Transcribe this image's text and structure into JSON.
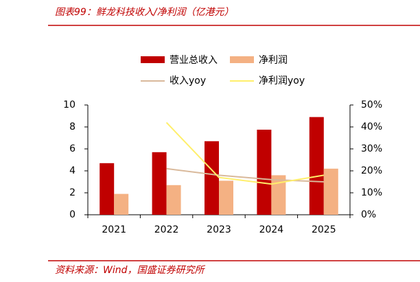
{
  "chart_data": {
    "type": "bar",
    "title": "图表99：鲜龙科技收入/净利润（亿港元）",
    "source": "资料来源：Wind，国盛证券研究所",
    "categories": [
      "2021",
      "2022",
      "2023",
      "2024",
      "2025"
    ],
    "series": [
      {
        "name": "营业总收入",
        "type": "bar",
        "color": "#c00000",
        "values": [
          4.7,
          5.7,
          6.7,
          7.75,
          8.9
        ]
      },
      {
        "name": "净利润",
        "type": "bar",
        "color": "#f4b183",
        "values": [
          1.9,
          2.7,
          3.1,
          3.6,
          4.2
        ]
      },
      {
        "name": "收入yoy",
        "type": "line",
        "axis": "y2",
        "color": "#d9b99b",
        "values": [
          null,
          21,
          18,
          16,
          15
        ]
      },
      {
        "name": "净利润yoy",
        "type": "line",
        "axis": "y2",
        "color": "#ffef6b",
        "values": [
          null,
          42,
          17,
          14,
          18
        ]
      }
    ],
    "ylim": [
      0,
      10
    ],
    "yticks": [
      0,
      2,
      4,
      6,
      8,
      10
    ],
    "y2lim": [
      0,
      50
    ],
    "y2ticks": [
      {
        "value": 0,
        "label": "0%"
      },
      {
        "value": 10,
        "label": "10%"
      },
      {
        "value": 20,
        "label": "20%"
      },
      {
        "value": 30,
        "label": "30%"
      },
      {
        "value": 40,
        "label": "40%"
      },
      {
        "value": 50,
        "label": "50%"
      }
    ],
    "legend": "top"
  }
}
